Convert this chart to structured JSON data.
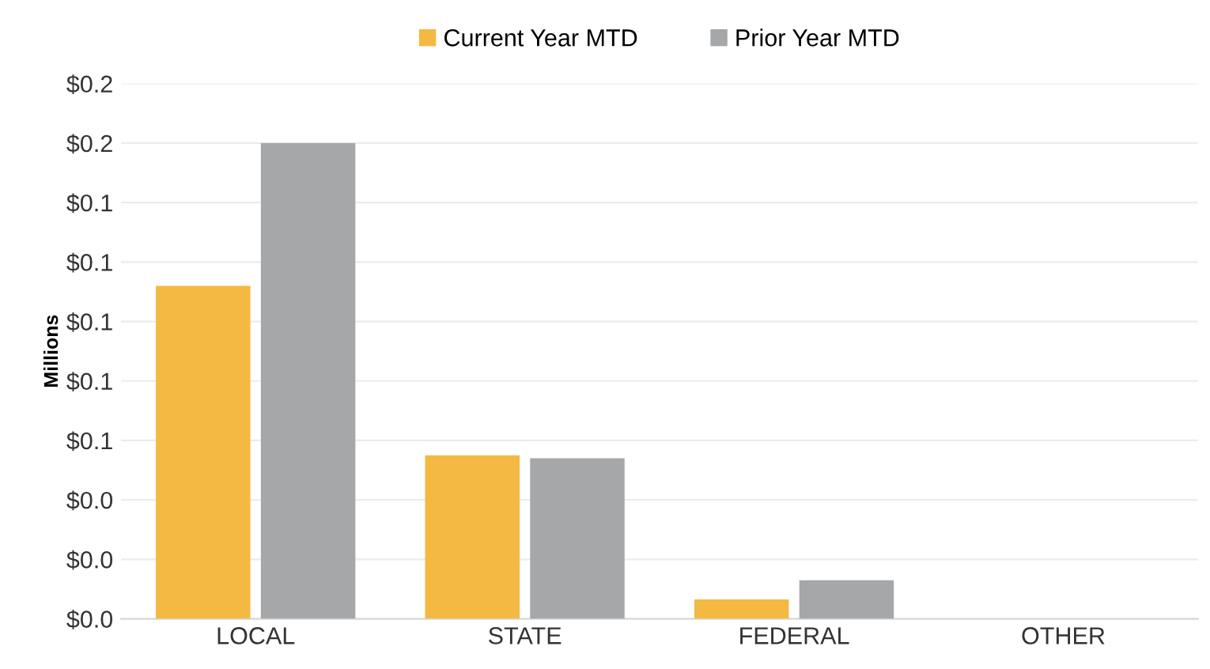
{
  "chart_data": {
    "type": "bar",
    "ylabel": "Millions",
    "categories": [
      "LOCAL",
      "STATE",
      "FEDERAL",
      "OTHER"
    ],
    "series": [
      {
        "name": "Current Year MTD",
        "color": "#f4b942",
        "values": [
          0.112,
          0.055,
          0.0065,
          0
        ]
      },
      {
        "name": "Prior Year MTD",
        "color": "#a5a7a9",
        "values": [
          0.16,
          0.054,
          0.013,
          0
        ]
      }
    ],
    "ylim": [
      0,
      0.18
    ],
    "yticks": [
      {
        "value": 0,
        "label": "$0.0"
      },
      {
        "value": 0.02,
        "label": "$0.0"
      },
      {
        "value": 0.04,
        "label": "$0.0"
      },
      {
        "value": 0.06,
        "label": "$0.1"
      },
      {
        "value": 0.08,
        "label": "$0.1"
      },
      {
        "value": 0.1,
        "label": "$0.1"
      },
      {
        "value": 0.12,
        "label": "$0.1"
      },
      {
        "value": 0.14,
        "label": "$0.1"
      },
      {
        "value": 0.16,
        "label": "$0.2"
      },
      {
        "value": 0.18,
        "label": "$0.2"
      }
    ],
    "grid": "y",
    "legend": "top"
  }
}
